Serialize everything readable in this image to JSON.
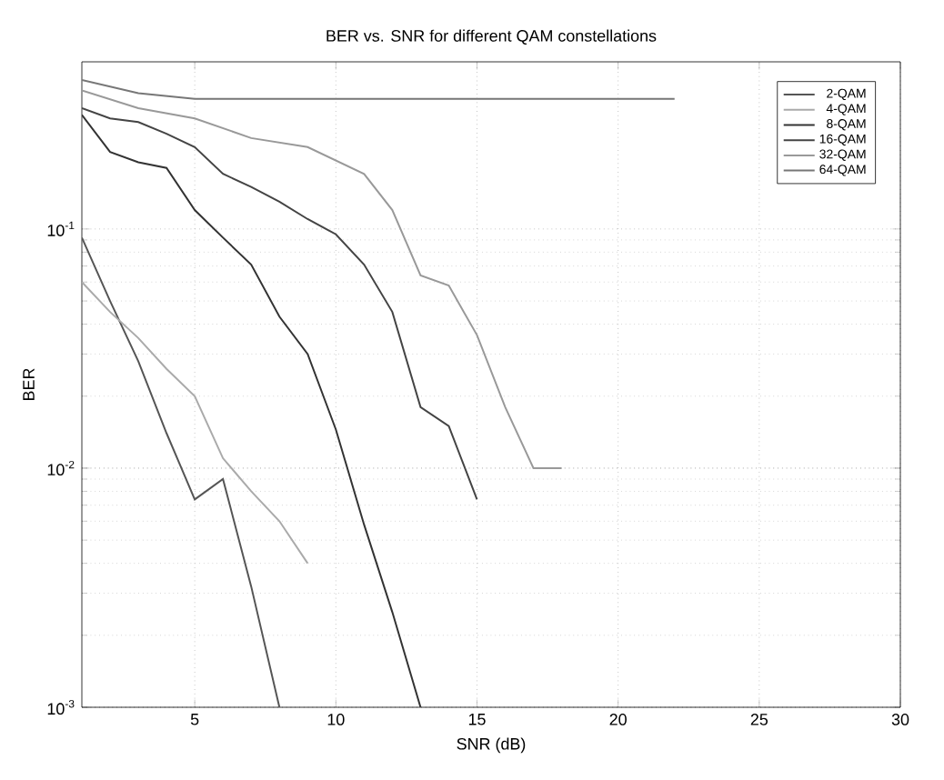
{
  "chart_data": {
    "type": "line",
    "title": "BER vs. SNR for different QAM constellations",
    "xlabel": "SNR (dB)",
    "ylabel": "BER",
    "log": "y",
    "grid": true,
    "legend": "top right",
    "xlim": [
      1,
      30
    ],
    "xticks": [
      5,
      10,
      15,
      20,
      25,
      30
    ],
    "ylim": [
      0.001,
      0.5
    ],
    "yticks": [
      {
        "value": 0.001,
        "label": "10$^{-3}$"
      },
      {
        "value": 0.01,
        "label": "10$^{-2}$"
      },
      {
        "value": 0.1,
        "label": "10$^{-1}$"
      }
    ],
    "series": [
      {
        "name": "2-QAM",
        "color": "#555555",
        "x": [
          1,
          2,
          3,
          4,
          5,
          6,
          7,
          8
        ],
        "values": [
          0.092,
          0.05,
          0.028,
          0.014,
          0.0074,
          0.009,
          0.0032,
          0.001
        ]
      },
      {
        "name": "4-QAM",
        "color": "#aaaaaa",
        "x": [
          1,
          2,
          3,
          4,
          5,
          6,
          7,
          8,
          9
        ],
        "values": [
          0.06,
          0.045,
          0.035,
          0.026,
          0.02,
          0.011,
          0.008,
          0.006,
          0.004
        ]
      },
      {
        "name": "8-QAM",
        "color": "#333333",
        "x": [
          1,
          2,
          3,
          4,
          5,
          6,
          7,
          8,
          9,
          10,
          11,
          12,
          13
        ],
        "values": [
          0.3,
          0.21,
          0.19,
          0.18,
          0.12,
          0.092,
          0.071,
          0.043,
          0.03,
          0.0145,
          0.0058,
          0.0025,
          0.001
        ]
      },
      {
        "name": "16-QAM",
        "color": "#444444",
        "x": [
          1,
          2,
          3,
          4,
          5,
          6,
          7,
          8,
          9,
          10,
          11,
          12,
          13,
          14,
          15
        ],
        "values": [
          0.32,
          0.29,
          0.28,
          0.25,
          0.22,
          0.17,
          0.15,
          0.13,
          0.11,
          0.095,
          0.071,
          0.045,
          0.018,
          0.015,
          0.0074
        ]
      },
      {
        "name": "32-QAM",
        "color": "#999999",
        "x": [
          1,
          3,
          5,
          7,
          9,
          11,
          12,
          13,
          14,
          15,
          16,
          17,
          18
        ],
        "values": [
          0.38,
          0.32,
          0.29,
          0.24,
          0.22,
          0.17,
          0.12,
          0.064,
          0.058,
          0.036,
          0.018,
          0.01,
          0.01
        ]
      },
      {
        "name": "64-QAM",
        "color": "#777777",
        "x": [
          1,
          3,
          5,
          10,
          15,
          22
        ],
        "values": [
          0.42,
          0.37,
          0.35,
          0.35,
          0.35,
          0.35
        ]
      }
    ]
  }
}
